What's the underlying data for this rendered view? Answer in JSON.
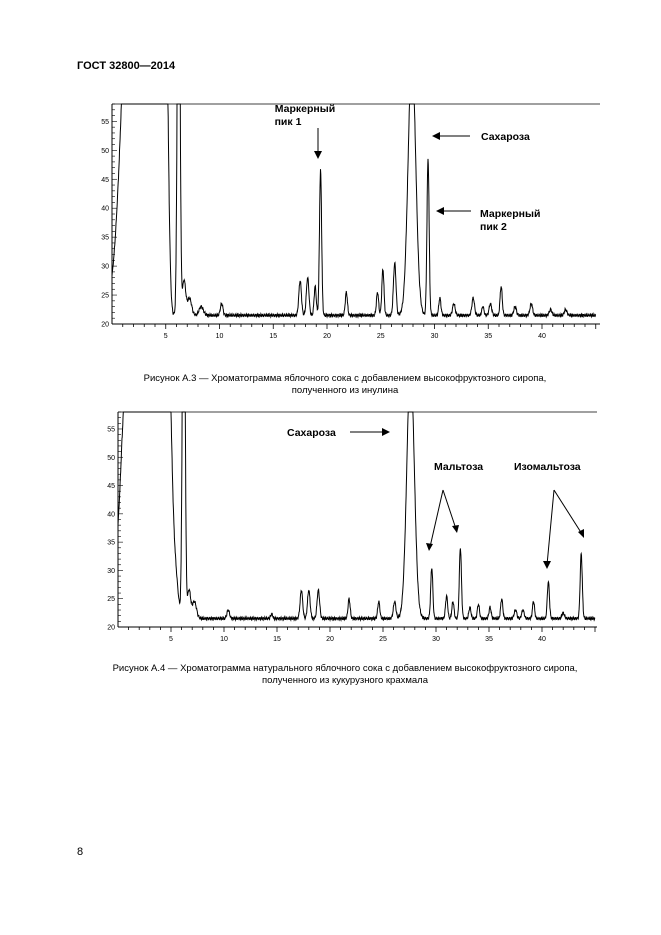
{
  "header": {
    "doc_code": "ГОСТ 32800—2014"
  },
  "page_number": "8",
  "figures": [
    {
      "caption_line1": "Рисунок А.3 — Хроматограмма яблочного сока с добавлением высокофруктозного сиропа,",
      "caption_line2": "полученного из инулина",
      "annotations": {
        "marker1_line1": "Маркерный",
        "marker1_line2": "пик 1",
        "sucrose": "Сахароза",
        "marker2_line1": "Маркерный",
        "marker2_line2": "пик 2"
      }
    },
    {
      "caption_line1": "Рисунок А.4 — Хроматограмма натурального яблочного сока с добавлением высокофруктозного сиропа,",
      "caption_line2": "полученного из кукурузного крахмала",
      "annotations": {
        "sucrose": "Сахароза",
        "maltose": "Мальтоза",
        "isomaltose": "Изомальтоза"
      }
    }
  ],
  "chart_data": [
    {
      "type": "line",
      "xlim": [
        0,
        45
      ],
      "ylim": [
        20,
        58
      ],
      "x_ticks": [
        5,
        10,
        15,
        20,
        25,
        30,
        35,
        40
      ],
      "y_ticks": [
        20,
        25,
        30,
        35,
        40,
        45,
        50,
        55
      ],
      "baseline": 21.5,
      "injection": [
        1.2,
        1.8
      ],
      "peaks": [
        {
          "x": 2.0,
          "h": 80,
          "w": 0.9
        },
        {
          "x": 3.2,
          "h": 35,
          "w": 0.5
        },
        {
          "x": 4.0,
          "h": 45,
          "w": 0.4
        },
        {
          "x": 4.4,
          "h": 55,
          "w": 0.3
        },
        {
          "x": 4.8,
          "h": 50,
          "w": 0.25
        },
        {
          "x": 5.1,
          "h": 25,
          "w": 0.2
        },
        {
          "x": 6.2,
          "h": 80,
          "w": 0.12
        },
        {
          "x": 6.7,
          "h": 6,
          "w": 0.15
        },
        {
          "x": 7.2,
          "h": 3,
          "w": 0.2
        },
        {
          "x": 8.3,
          "h": 1.5,
          "w": 0.2
        },
        {
          "x": 10.2,
          "h": 2,
          "w": 0.12
        },
        {
          "x": 17.5,
          "h": 6,
          "w": 0.12
        },
        {
          "x": 18.2,
          "h": 6.5,
          "w": 0.12
        },
        {
          "x": 18.9,
          "h": 5,
          "w": 0.1
        },
        {
          "x": 19.4,
          "h": 25,
          "w": 0.1
        },
        {
          "x": 21.8,
          "h": 4,
          "w": 0.1
        },
        {
          "x": 24.7,
          "h": 4,
          "w": 0.1
        },
        {
          "x": 25.2,
          "h": 8,
          "w": 0.1
        },
        {
          "x": 26.3,
          "h": 9,
          "w": 0.12
        },
        {
          "x": 27.9,
          "h": 45,
          "w": 0.35
        },
        {
          "x": 29.4,
          "h": 27,
          "w": 0.1
        },
        {
          "x": 30.5,
          "h": 3,
          "w": 0.1
        },
        {
          "x": 31.8,
          "h": 2,
          "w": 0.12
        },
        {
          "x": 33.6,
          "h": 3,
          "w": 0.12
        },
        {
          "x": 34.5,
          "h": 1.5,
          "w": 0.1
        },
        {
          "x": 35.2,
          "h": 2,
          "w": 0.12
        },
        {
          "x": 36.2,
          "h": 5,
          "w": 0.1
        },
        {
          "x": 37.5,
          "h": 1.5,
          "w": 0.12
        },
        {
          "x": 39.0,
          "h": 2,
          "w": 0.12
        },
        {
          "x": 40.8,
          "h": 1,
          "w": 0.12
        },
        {
          "x": 42.2,
          "h": 1,
          "w": 0.12
        }
      ]
    },
    {
      "type": "line",
      "xlim": [
        0,
        45
      ],
      "ylim": [
        20,
        58
      ],
      "x_ticks": [
        5,
        10,
        15,
        20,
        25,
        30,
        35,
        40
      ],
      "y_ticks": [
        20,
        25,
        30,
        35,
        40,
        45,
        50,
        55
      ],
      "baseline": 21.5,
      "injection": [
        0.4,
        1.4
      ],
      "peaks": [
        {
          "x": 1.6,
          "h": 80,
          "w": 0.9
        },
        {
          "x": 2.6,
          "h": 30,
          "w": 0.5
        },
        {
          "x": 3.4,
          "h": 40,
          "w": 0.4
        },
        {
          "x": 4.2,
          "h": 50,
          "w": 0.3
        },
        {
          "x": 4.8,
          "h": 40,
          "w": 0.25
        },
        {
          "x": 5.3,
          "h": 10,
          "w": 0.3
        },
        {
          "x": 6.2,
          "h": 80,
          "w": 0.12
        },
        {
          "x": 6.7,
          "h": 5,
          "w": 0.15
        },
        {
          "x": 7.2,
          "h": 3,
          "w": 0.2
        },
        {
          "x": 10.4,
          "h": 1.5,
          "w": 0.12
        },
        {
          "x": 14.5,
          "h": 0.8,
          "w": 0.1
        },
        {
          "x": 17.3,
          "h": 5,
          "w": 0.12
        },
        {
          "x": 18.0,
          "h": 5,
          "w": 0.12
        },
        {
          "x": 18.9,
          "h": 5,
          "w": 0.12
        },
        {
          "x": 21.8,
          "h": 3.5,
          "w": 0.1
        },
        {
          "x": 24.6,
          "h": 3,
          "w": 0.1
        },
        {
          "x": 26.1,
          "h": 3,
          "w": 0.12
        },
        {
          "x": 27.6,
          "h": 45,
          "w": 0.35
        },
        {
          "x": 29.6,
          "h": 9,
          "w": 0.1
        },
        {
          "x": 31.0,
          "h": 4,
          "w": 0.1
        },
        {
          "x": 31.6,
          "h": 3,
          "w": 0.1
        },
        {
          "x": 32.3,
          "h": 12.5,
          "w": 0.1
        },
        {
          "x": 33.2,
          "h": 2,
          "w": 0.1
        },
        {
          "x": 34.0,
          "h": 2.5,
          "w": 0.1
        },
        {
          "x": 35.1,
          "h": 2,
          "w": 0.1
        },
        {
          "x": 36.2,
          "h": 3.5,
          "w": 0.1
        },
        {
          "x": 37.5,
          "h": 1.5,
          "w": 0.12
        },
        {
          "x": 38.2,
          "h": 1.5,
          "w": 0.12
        },
        {
          "x": 39.2,
          "h": 3,
          "w": 0.1
        },
        {
          "x": 40.6,
          "h": 6.5,
          "w": 0.1
        },
        {
          "x": 42.0,
          "h": 1,
          "w": 0.12
        },
        {
          "x": 43.7,
          "h": 11.5,
          "w": 0.1
        }
      ]
    }
  ]
}
